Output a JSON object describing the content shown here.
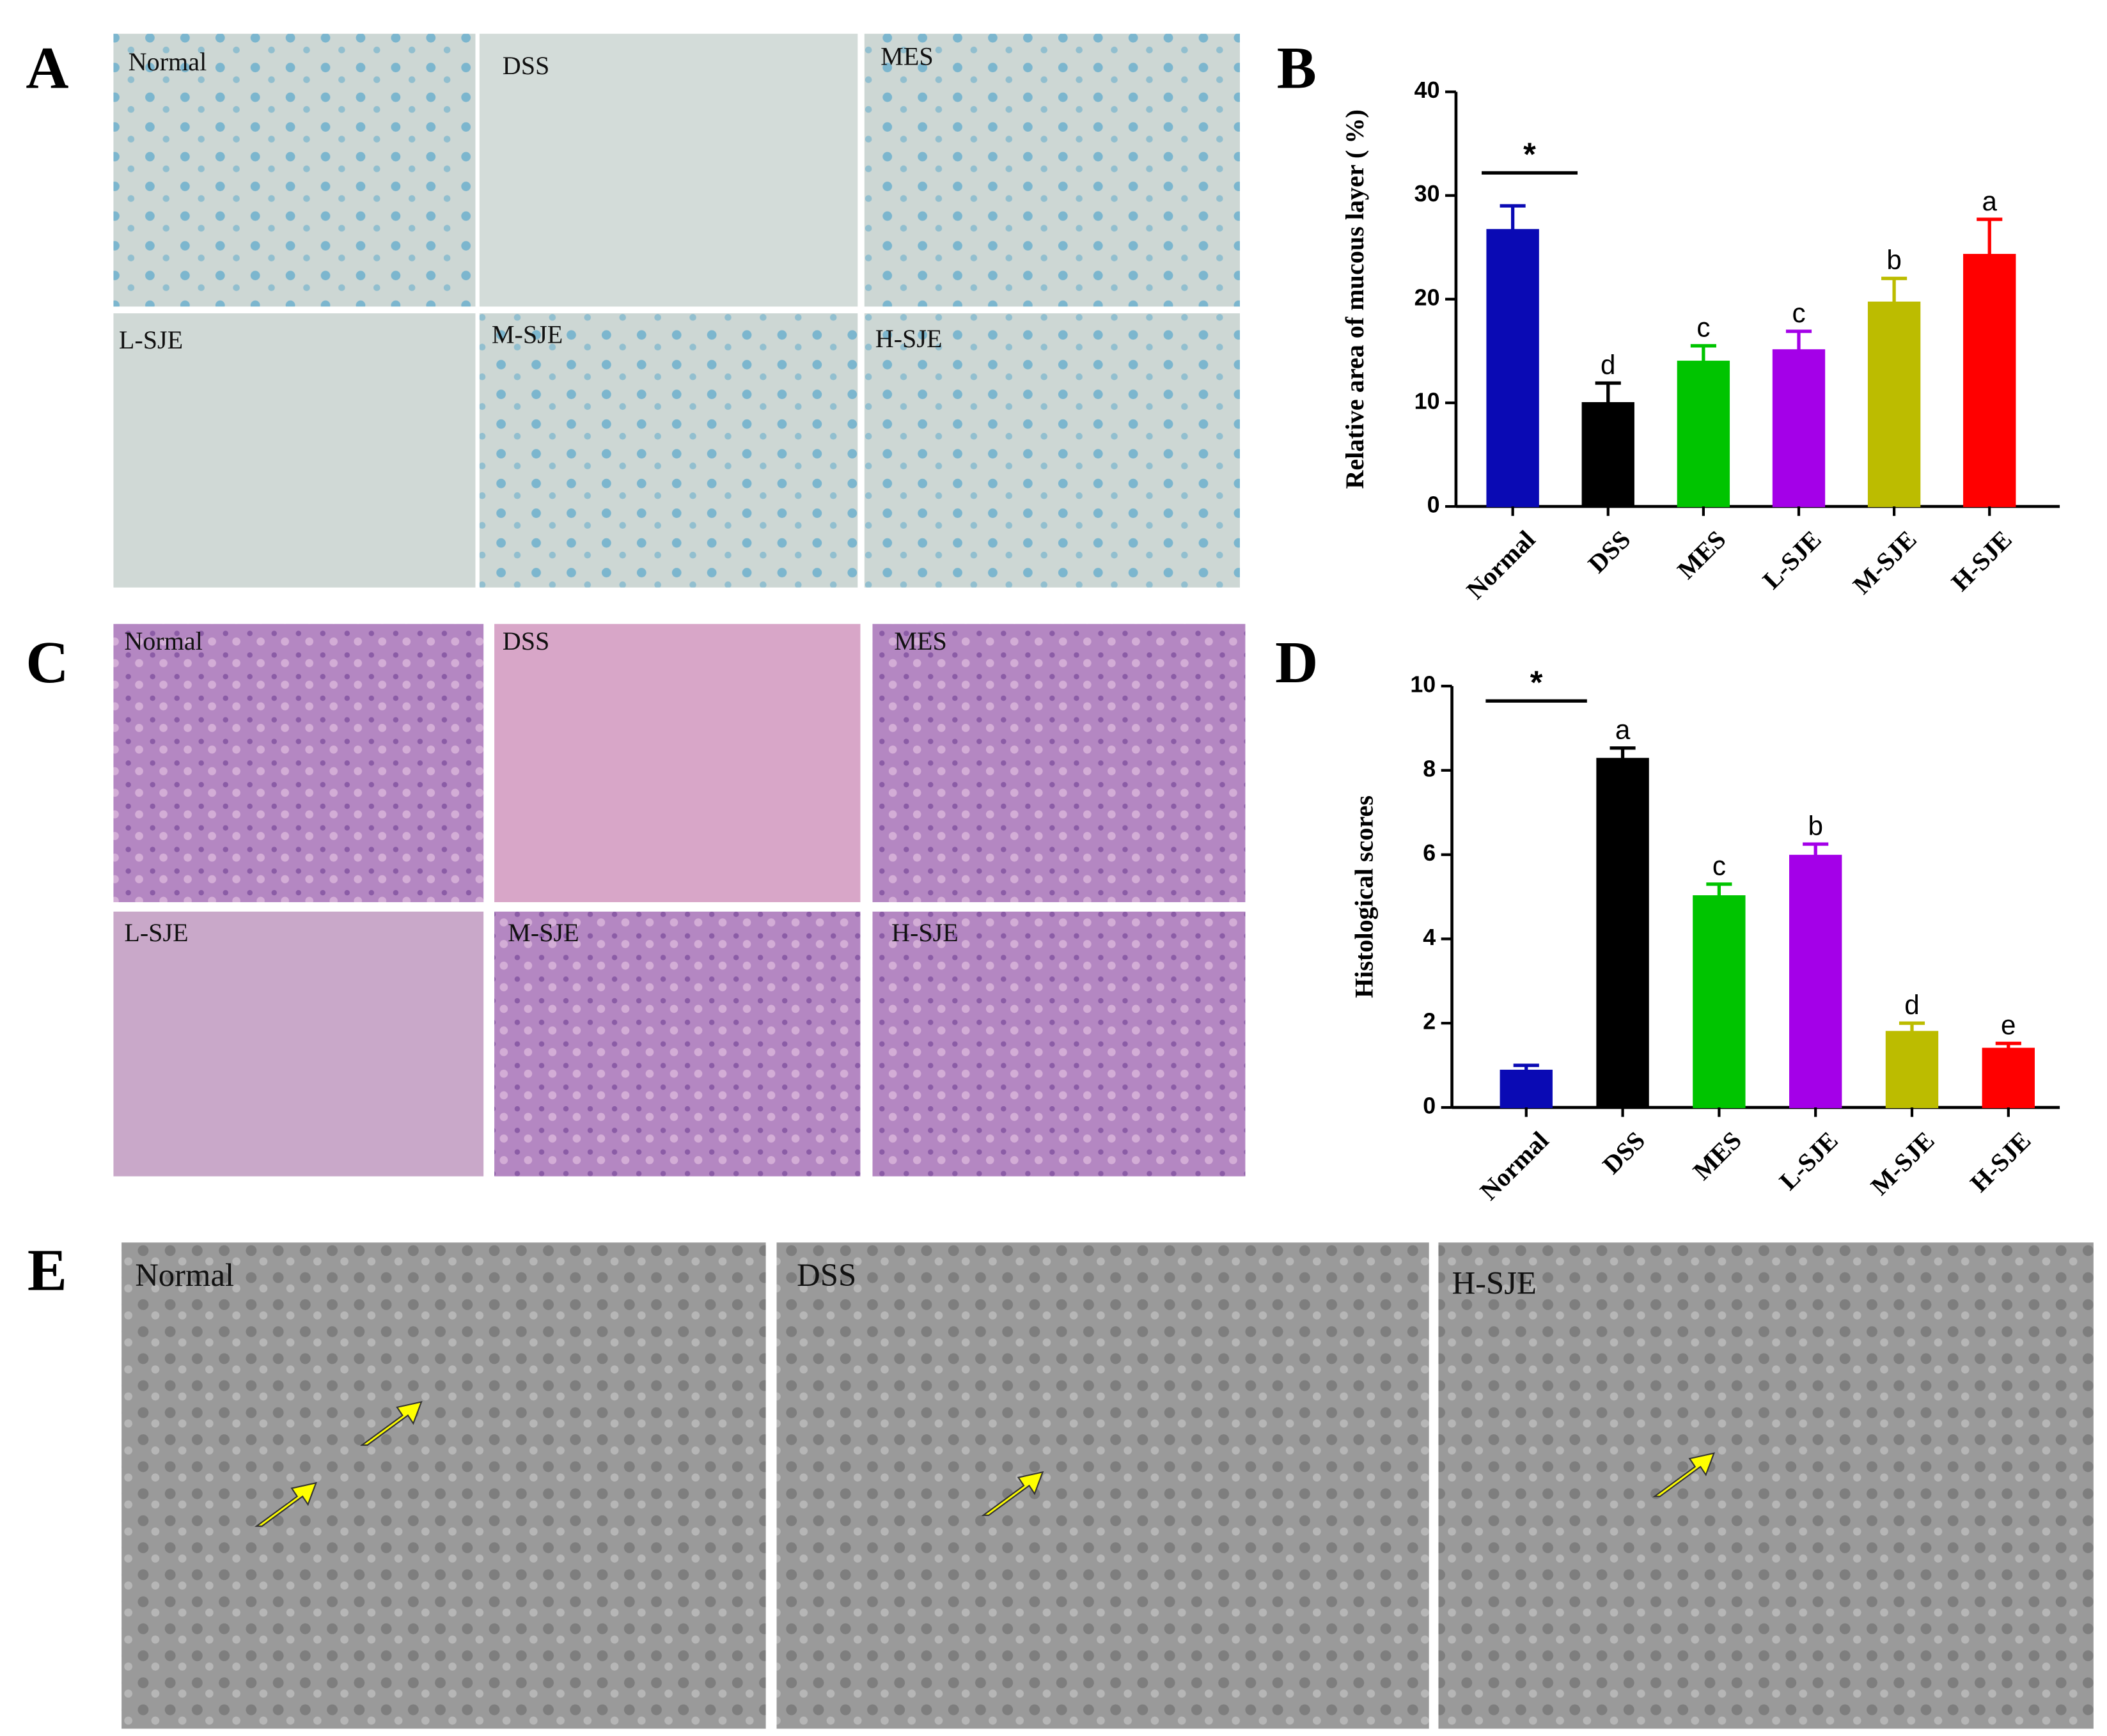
{
  "figure": {
    "panel_letters": [
      "A",
      "B",
      "C",
      "D",
      "E"
    ],
    "panel_a_labels": [
      "Normal",
      "DSS",
      "MES",
      "L-SJE",
      "M-SJE",
      "H-SJE"
    ],
    "panel_c_labels": [
      "Normal",
      "DSS",
      "MES",
      "L-SJE",
      "M-SJE",
      "H-SJE"
    ],
    "panel_e_labels": [
      "Normal",
      "DSS",
      "H-SJE"
    ]
  },
  "chart_data": [
    {
      "type": "bar",
      "y_label": "Relative area of mucous layer ( %)",
      "significance": "*",
      "categories": [
        "Normal",
        "DSS",
        "MES",
        "L-SJE",
        "M-SJE",
        "H-SJE"
      ],
      "values": [
        26.7,
        10,
        14,
        15.1,
        19.7,
        24.3
      ],
      "errors": [
        2.3,
        1.9,
        1.5,
        1.8,
        2.3,
        3.4
      ],
      "bar_labels": [
        null,
        "d",
        "c",
        "c",
        "b",
        "a"
      ],
      "colors": [
        "#0a0ab4",
        "#000000",
        "#00c400",
        "#a400e8",
        "#bcbc00",
        "#ff0000"
      ],
      "ylim": [
        0,
        40
      ],
      "yticks": [
        0,
        10,
        20,
        30,
        40
      ]
    },
    {
      "type": "bar",
      "y_label": "Histological scores",
      "significance": "*",
      "categories": [
        "Normal",
        "DSS",
        "MES",
        "L-SJE",
        "M-SJE",
        "H-SJE"
      ],
      "values": [
        0.88,
        8.28,
        5.02,
        5.98,
        1.8,
        1.4
      ],
      "errors": [
        0.12,
        0.25,
        0.28,
        0.27,
        0.2,
        0.12
      ],
      "bar_labels": [
        null,
        "a",
        "c",
        "b",
        "d",
        "e"
      ],
      "colors": [
        "#0a0ab4",
        "#000000",
        "#00c400",
        "#a400e8",
        "#bcbc00",
        "#ff0000"
      ],
      "ylim": [
        0,
        10
      ],
      "yticks": [
        0,
        2,
        4,
        6,
        8,
        10
      ]
    }
  ]
}
